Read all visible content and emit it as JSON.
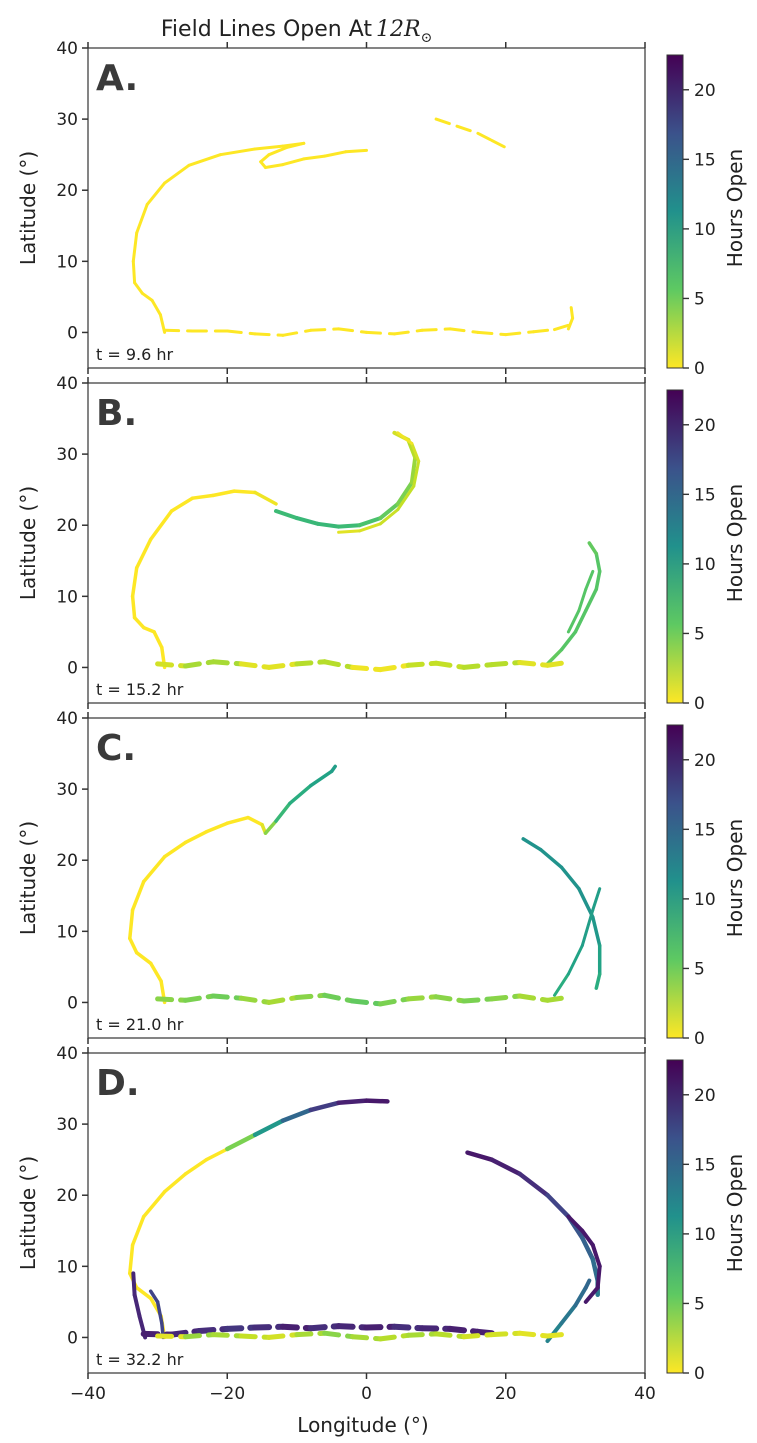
{
  "chart_data": {
    "type": "scatter",
    "title_prefix": "Field Lines Open At ",
    "title_math_base": "12R",
    "title_math_sub": "⊙",
    "xlabel": "Longitude (°)",
    "ylabel": "Latitude (°)",
    "colorbar_label": "Hours Open",
    "xlim": [
      -40,
      40
    ],
    "ylim": [
      -5,
      40
    ],
    "xticks": [
      -40,
      -20,
      0,
      20,
      40
    ],
    "xtick_labels": [
      "−40",
      "−20",
      "0",
      "20",
      "40"
    ],
    "yticks": [
      0,
      10,
      20,
      30,
      40
    ],
    "colorbar_range": [
      0,
      22.5
    ],
    "colorbar_ticks": [
      0,
      5,
      10,
      15,
      20
    ],
    "colormap": "viridis_r",
    "panels": [
      {
        "letter": "A.",
        "time_label": "t = 9.6 hr",
        "series": [
          {
            "x": [
              -29,
              -29.6,
              -30.8,
              -32.2,
              -33.3,
              -33.5,
              -33,
              -31.5,
              -29,
              -25.5,
              -21,
              -16,
              -12,
              -9
            ],
            "y": [
              0,
              2.5,
              4.5,
              5.5,
              7,
              10,
              14,
              18,
              21,
              23.5,
              25,
              25.8,
              26.2,
              26.6
            ],
            "c": [
              0,
              0,
              0,
              0,
              0,
              0,
              0,
              0,
              0,
              0,
              0,
              0,
              0,
              0
            ],
            "w": 3
          },
          {
            "x": [
              -9,
              -11.5,
              -14,
              -15.2,
              -14.5,
              -12,
              -9,
              -6,
              -3,
              0
            ],
            "y": [
              26.6,
              26,
              25,
              24,
              23.2,
              23.6,
              24.4,
              24.8,
              25.4,
              25.6
            ],
            "c": [
              0,
              0,
              0,
              0,
              0,
              0,
              0,
              0,
              0,
              0
            ],
            "w": 3
          },
          {
            "x": [
              -29,
              -25,
              -20,
              -16,
              -12,
              -8,
              -4,
              0,
              4,
              8,
              12,
              16,
              20,
              24,
              27,
              29
            ],
            "y": [
              0.3,
              0.2,
              0.2,
              -0.2,
              -0.4,
              0.3,
              0.5,
              0,
              -0.2,
              0.3,
              0.5,
              0,
              -0.3,
              0.1,
              0.4,
              1
            ],
            "c": [
              0,
              0,
              0,
              0,
              0,
              0,
              0,
              0,
              0,
              0,
              0,
              0,
              0,
              0,
              0,
              0
            ],
            "w": 3,
            "dashed": true
          },
          {
            "x": [
              29,
              29.6,
              29.4
            ],
            "y": [
              0.5,
              2,
              3.5
            ],
            "c": [
              0,
              0,
              0
            ],
            "w": 3
          },
          {
            "x": [
              10,
              13,
              16,
              18,
              20
            ],
            "y": [
              30,
              29,
              28,
              27,
              26
            ],
            "c": [
              0,
              0,
              0,
              0,
              0
            ],
            "w": 3,
            "dashed": true
          }
        ]
      },
      {
        "letter": "B.",
        "time_label": "t = 15.2 hr",
        "series": [
          {
            "x": [
              -29,
              -29.4,
              -30.5,
              -32,
              -33.3,
              -33.6,
              -33,
              -31,
              -28,
              -25,
              -22,
              -19,
              -16,
              -13
            ],
            "y": [
              0,
              2.8,
              5,
              5.6,
              7,
              10,
              14,
              18,
              22,
              23.8,
              24.2,
              24.8,
              24.6,
              23
            ],
            "c": [
              0,
              0,
              0,
              0,
              0,
              0,
              0,
              0,
              0,
              0,
              0,
              0,
              0,
              1
            ],
            "w": 3.5
          },
          {
            "x": [
              -13,
              -10,
              -7,
              -4,
              -1,
              2,
              4.5,
              6.5,
              7,
              6,
              4
            ],
            "y": [
              22,
              21,
              20.2,
              19.8,
              20,
              21,
              23,
              26,
              29.5,
              32,
              33
            ],
            "c": [
              7,
              7.5,
              7.5,
              7.5,
              7,
              6,
              5,
              4,
              3,
              2,
              1
            ],
            "w": 4
          },
          {
            "x": [
              -4,
              -1,
              2,
              4.5,
              6.8,
              7.5,
              6.5,
              4.5
            ],
            "y": [
              19,
              19.2,
              20.2,
              22.2,
              25.5,
              29,
              31.5,
              33
            ],
            "c": [
              1,
              1,
              1.5,
              2,
              2,
              2,
              1,
              0
            ],
            "w": 3
          },
          {
            "x": [
              26,
              28,
              30,
              31.5,
              33,
              33.5,
              33,
              32
            ],
            "y": [
              0.5,
              2.5,
              5,
              8,
              11,
              13.5,
              16,
              17.5
            ],
            "c": [
              5,
              6,
              6,
              6,
              6,
              6,
              6,
              5
            ],
            "w": 3.5
          },
          {
            "x": [
              29,
              30.5,
              31.5,
              32.5
            ],
            "y": [
              5,
              8,
              11,
              13.5
            ],
            "c": [
              6,
              6,
              6,
              6
            ],
            "w": 3
          },
          {
            "x": [
              -30,
              -26,
              -22,
              -18,
              -14,
              -10,
              -6,
              -2,
              2,
              6,
              10,
              14,
              18,
              22,
              26,
              28
            ],
            "y": [
              0.5,
              0.2,
              0.8,
              0.5,
              0,
              0.5,
              0.8,
              0,
              -0.3,
              0.3,
              0.6,
              0,
              0.4,
              0.7,
              0.3,
              0.6
            ],
            "c": [
              3,
              0,
              6,
              0,
              2,
              0,
              5,
              0,
              1,
              0,
              4,
              0,
              5,
              0,
              2,
              0
            ],
            "w": 5,
            "dashed": true
          }
        ]
      },
      {
        "letter": "C.",
        "time_label": "t = 21.0 hr",
        "series": [
          {
            "x": [
              -29,
              -29.5,
              -31,
              -33,
              -34,
              -33.6,
              -32,
              -29,
              -26,
              -23,
              -20,
              -17,
              -15
            ],
            "y": [
              0,
              3,
              5.5,
              7,
              9,
              13,
              17,
              20.5,
              22.5,
              24,
              25.2,
              26,
              25
            ],
            "c": [
              0,
              0,
              0,
              0,
              0,
              0,
              0,
              0,
              0,
              0,
              0,
              0,
              0
            ],
            "w": 3.5
          },
          {
            "x": [
              -15,
              -14.5,
              -13,
              -11,
              -8,
              -5,
              -4.5
            ],
            "y": [
              25,
              23.8,
              25.5,
              28,
              30.5,
              32.5,
              33.2
            ],
            "c": [
              1,
              1,
              7,
              8,
              9,
              10,
              10
            ],
            "w": 3.5
          },
          {
            "x": [
              22.5,
              25,
              28,
              30.5,
              32.5,
              33.5,
              33.5,
              33
            ],
            "y": [
              23,
              21.5,
              19,
              16,
              12,
              8,
              4,
              2
            ],
            "c": [
              11,
              11,
              11,
              11,
              11,
              10,
              9,
              8
            ],
            "w": 3.5
          },
          {
            "x": [
              27,
              29,
              31,
              32.5,
              33.5
            ],
            "y": [
              1,
              4,
              8,
              13,
              16
            ],
            "c": [
              8,
              9,
              10,
              10,
              10
            ],
            "w": 3
          },
          {
            "x": [
              -30,
              -26,
              -22,
              -18,
              -14,
              -10,
              -6,
              -2,
              2,
              6,
              10,
              14,
              18,
              22,
              26,
              28
            ],
            "y": [
              0.5,
              0.3,
              0.9,
              0.6,
              0,
              0.7,
              1,
              0.2,
              -0.2,
              0.5,
              0.8,
              0.2,
              0.5,
              0.9,
              0.3,
              0.6
            ],
            "c": [
              8,
              0,
              9,
              1,
              6,
              0,
              8,
              2,
              9,
              0,
              7,
              1,
              8,
              0,
              6,
              0
            ],
            "w": 5,
            "dashed": true
          }
        ]
      },
      {
        "letter": "D.",
        "time_label": "t = 32.2 hr",
        "series": [
          {
            "x": [
              -29,
              -29.5,
              -31,
              -33,
              -34,
              -33.6,
              -32,
              -29,
              -26,
              -23,
              -20
            ],
            "y": [
              0,
              3,
              5.5,
              7,
              9,
              13,
              17,
              20.5,
              23,
              25,
              26.5
            ],
            "c": [
              0,
              0,
              0,
              0,
              0,
              0,
              0,
              0,
              0,
              0,
              0
            ],
            "w": 3.5
          },
          {
            "x": [
              -20,
              -16,
              -12,
              -8,
              -4,
              0,
              3
            ],
            "y": [
              26.5,
              28.5,
              30.5,
              32,
              33,
              33.3,
              33.2
            ],
            "c": [
              1,
              8,
              13,
              17,
              20,
              21,
              21
            ],
            "w": 4.5
          },
          {
            "x": [
              14.5,
              18,
              22,
              26,
              29,
              31,
              32.5,
              33.2,
              33.2
            ],
            "y": [
              26,
              25,
              23,
              20,
              17,
              14,
              11,
              8,
              6
            ],
            "c": [
              21,
              21,
              20,
              19,
              17,
              16,
              15,
              14,
              13
            ],
            "w": 4.5
          },
          {
            "x": [
              29,
              31,
              32.5,
              33.5,
              33.2,
              31.5
            ],
            "y": [
              17,
              15,
              13,
              10,
              7,
              5
            ],
            "c": [
              21,
              21,
              21,
              21,
              21,
              21
            ],
            "w": 4
          },
          {
            "x": [
              26,
              28,
              30,
              31.5,
              32
            ],
            "y": [
              -0.5,
              2,
              4.5,
              7,
              8
            ],
            "c": [
              12,
              13,
              14,
              15,
              15
            ],
            "w": 4
          },
          {
            "x": [
              -33.5,
              -33.3,
              -32.6,
              -31.8
            ],
            "y": [
              9,
              6,
              3,
              0
            ],
            "c": [
              20,
              20,
              20,
              20
            ],
            "w": 4
          },
          {
            "x": [
              -31,
              -30,
              -29.4,
              -29.2
            ],
            "y": [
              6.5,
              5,
              2,
              0
            ],
            "c": [
              18,
              18,
              18,
              18
            ],
            "w": 3.5
          },
          {
            "x": [
              -32,
              -28,
              -24,
              -20,
              -16,
              -12,
              -8,
              -4,
              0,
              4,
              8,
              12,
              16,
              18
            ],
            "y": [
              0.5,
              0.4,
              0.9,
              1.2,
              1.4,
              1.5,
              1.3,
              1.6,
              1.4,
              1.5,
              1.3,
              1.2,
              0.8,
              0.6
            ],
            "c": [
              20,
              21,
              19,
              20,
              18,
              21,
              20,
              19,
              21,
              20,
              19,
              21,
              20,
              21
            ],
            "w": 6,
            "dashed": true
          },
          {
            "x": [
              -30,
              -26,
              -22,
              -18,
              -14,
              -10,
              -6,
              -2,
              2,
              6,
              10,
              14,
              18,
              22,
              26,
              28
            ],
            "y": [
              0.2,
              0.1,
              0.4,
              0.2,
              0,
              0.4,
              0.6,
              0.1,
              -0.2,
              0.3,
              0.5,
              0.1,
              0.4,
              0.6,
              0.2,
              0.4
            ],
            "c": [
              0,
              2,
              5,
              1,
              3,
              0,
              6,
              2,
              4,
              1,
              5,
              0,
              3,
              0,
              2,
              0
            ],
            "w": 5,
            "dashed": true
          }
        ]
      }
    ]
  }
}
